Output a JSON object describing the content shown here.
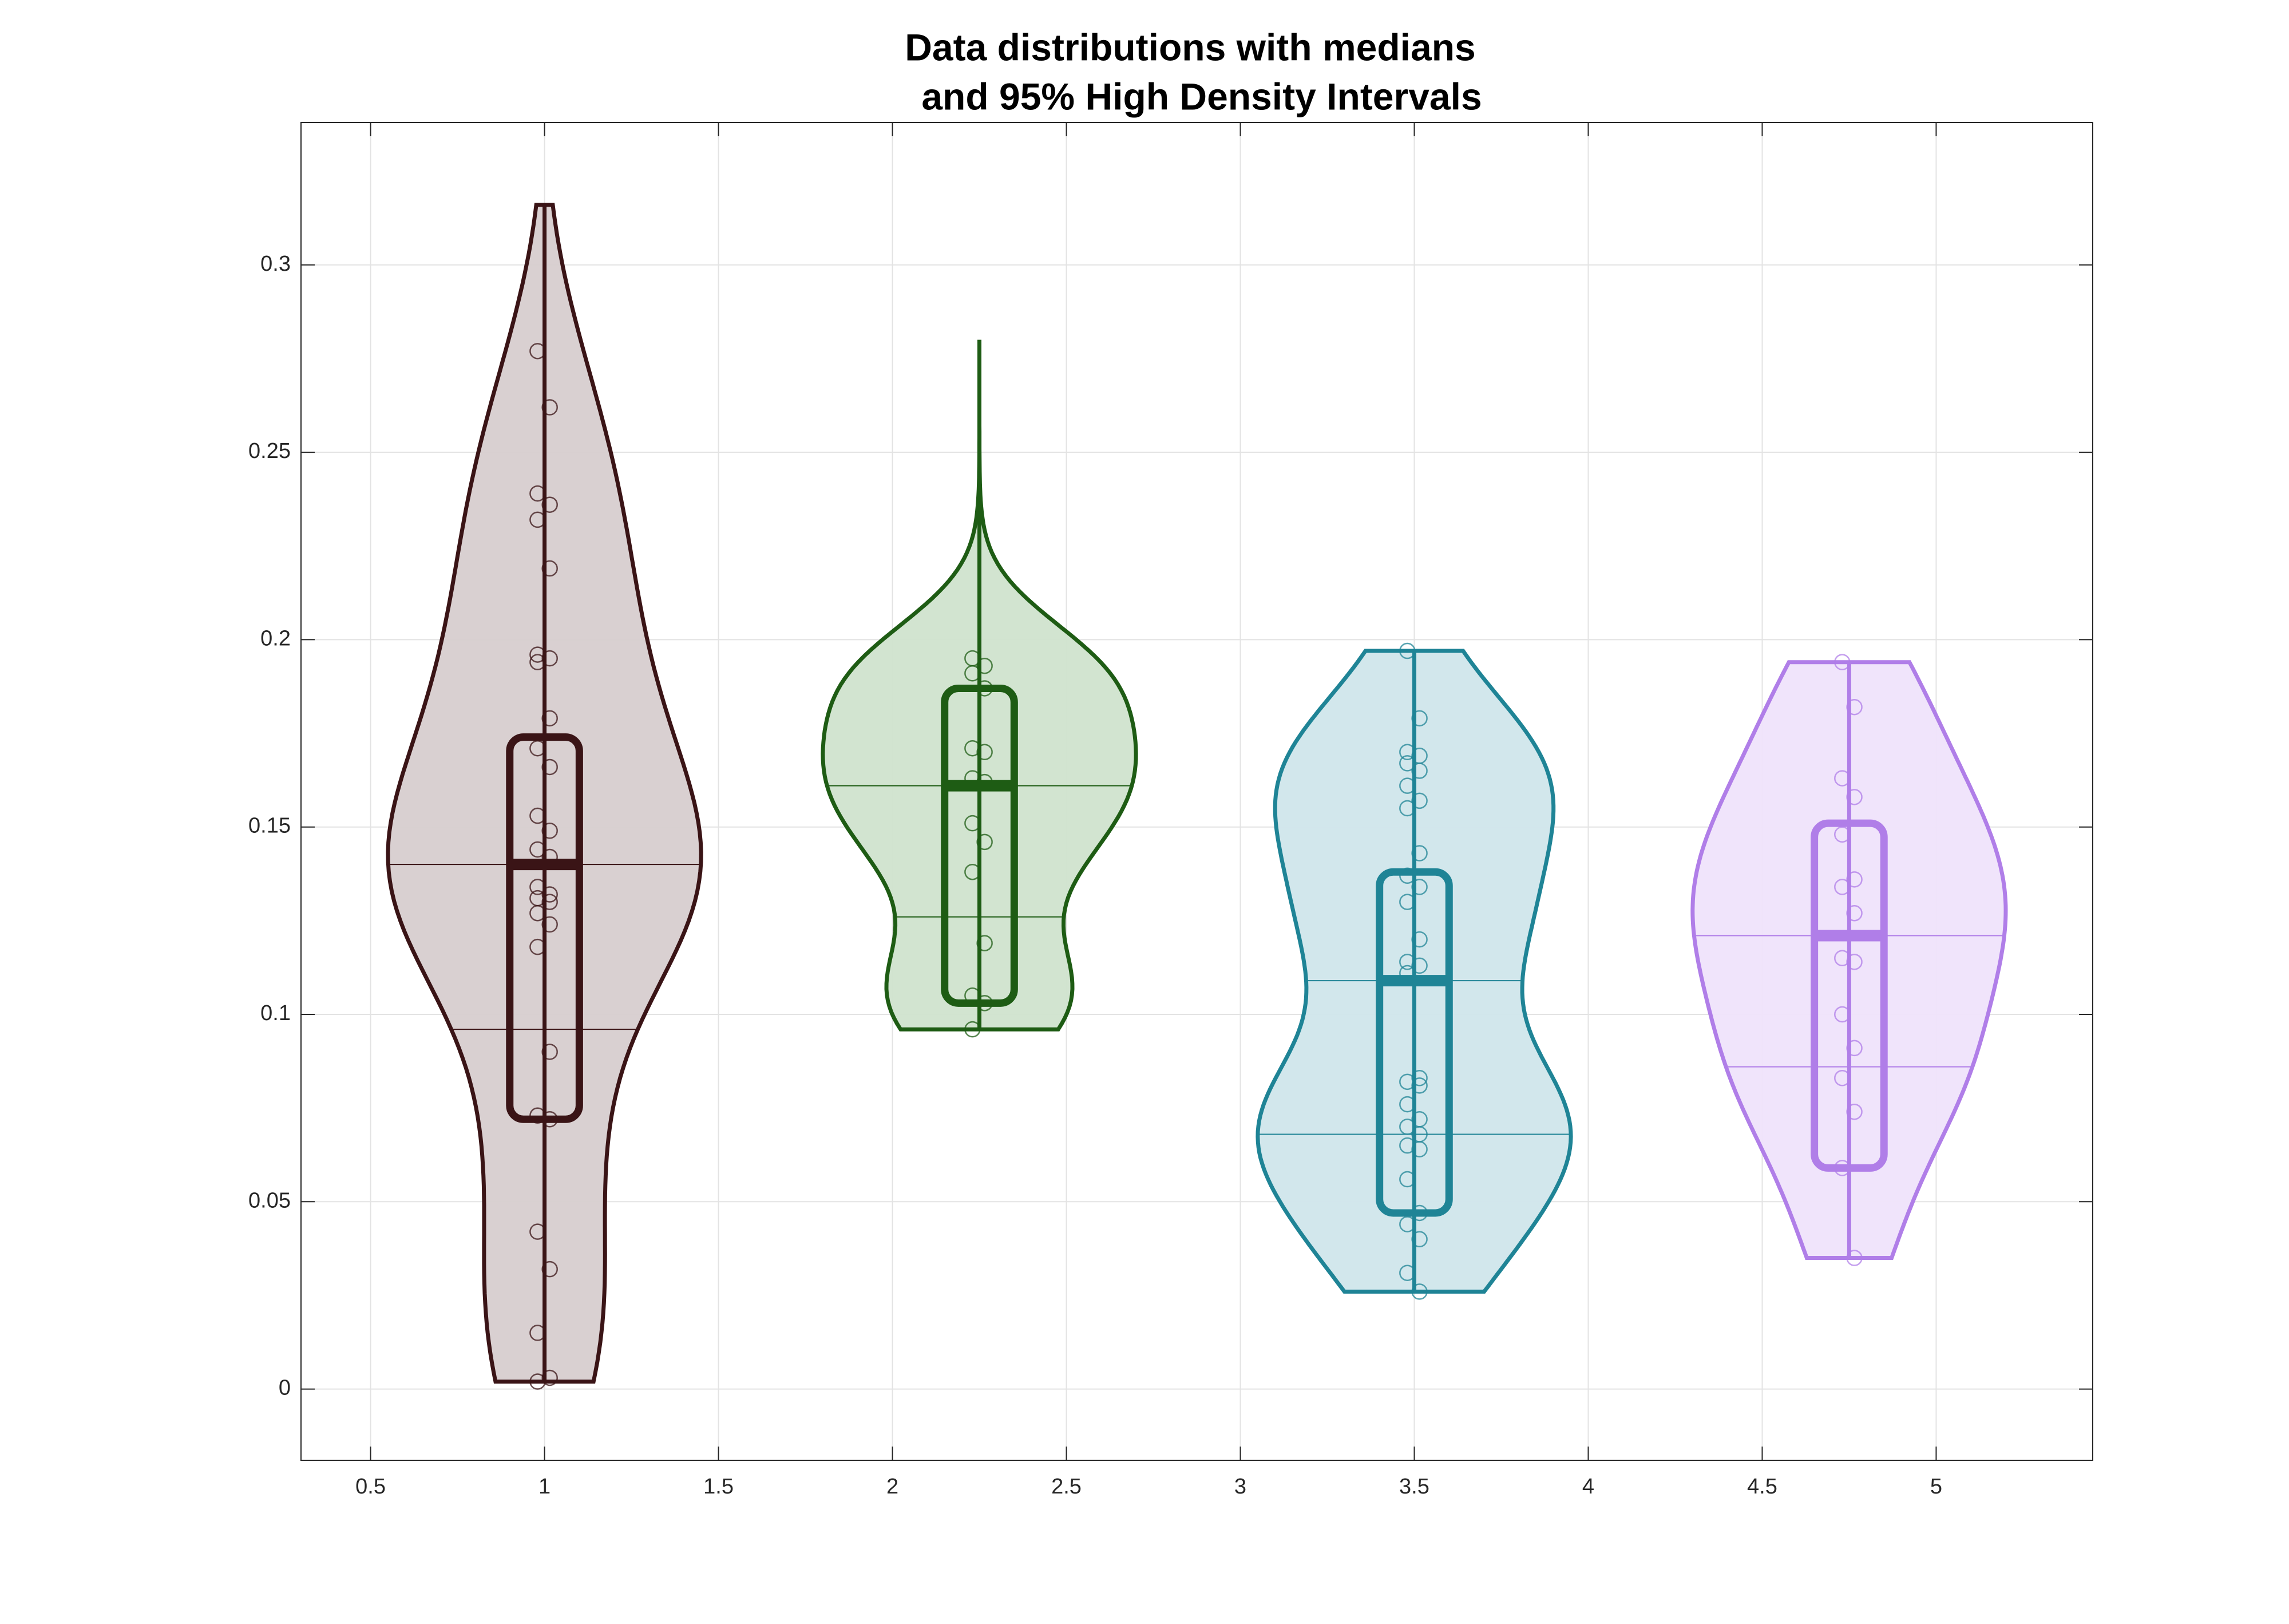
{
  "chart_data": {
    "type": "violin",
    "title": [
      "Data distributions with medians",
      "and 95% High Density Intervals"
    ],
    "xlim": [
      0.3,
      5.45
    ],
    "ylim": [
      -0.019,
      0.338
    ],
    "xticks": [
      0.5,
      1,
      1.5,
      2,
      2.5,
      3,
      3.5,
      4,
      4.5,
      5
    ],
    "yticks": [
      0,
      0.05,
      0.1,
      0.15,
      0.2,
      0.25,
      0.3
    ],
    "grid": true,
    "groups": [
      {
        "x": 1,
        "color": "#3a1416",
        "fill": "#d7cdcf",
        "median": 0.14,
        "box": [
          0.072,
          0.174
        ],
        "range": [
          0.002,
          0.316
        ],
        "reference_lines": [
          0.14,
          0.096
        ],
        "points": [
          0.277,
          0.262,
          0.239,
          0.236,
          0.232,
          0.219,
          0.196,
          0.195,
          0.194,
          0.179,
          0.171,
          0.166,
          0.153,
          0.149,
          0.144,
          0.142,
          0.134,
          0.132,
          0.131,
          0.13,
          0.127,
          0.124,
          0.118,
          0.09,
          0.073,
          0.072,
          0.042,
          0.032,
          0.015,
          0.003,
          0.002
        ]
      },
      {
        "x": 2.25,
        "color": "#1e5c14",
        "fill": "#d0e3cd",
        "median": 0.161,
        "box": [
          0.103,
          0.187
        ],
        "range": [
          0.096,
          0.28
        ],
        "reference_lines": [
          0.161,
          0.126
        ],
        "points": [
          0.195,
          0.193,
          0.191,
          0.187,
          0.171,
          0.17,
          0.163,
          0.162,
          0.151,
          0.146,
          0.138,
          0.119,
          0.105,
          0.103,
          0.096
        ]
      },
      {
        "x": 3.5,
        "color": "#1f8496",
        "fill": "#d0e6eb",
        "median": 0.109,
        "box": [
          0.047,
          0.138
        ],
        "range": [
          0.026,
          0.197
        ],
        "reference_lines": [
          0.109,
          0.068
        ],
        "points": [
          0.197,
          0.179,
          0.17,
          0.169,
          0.167,
          0.165,
          0.161,
          0.157,
          0.155,
          0.143,
          0.137,
          0.134,
          0.13,
          0.12,
          0.114,
          0.113,
          0.111,
          0.083,
          0.082,
          0.081,
          0.076,
          0.072,
          0.07,
          0.068,
          0.065,
          0.064,
          0.056,
          0.047,
          0.044,
          0.04,
          0.031,
          0.026
        ]
      },
      {
        "x": 4.75,
        "color": "#b07ee8",
        "fill": "#efe3fb",
        "median": 0.121,
        "box": [
          0.059,
          0.151
        ],
        "range": [
          0.035,
          0.194
        ],
        "reference_lines": [
          0.121,
          0.086
        ],
        "points": [
          0.194,
          0.182,
          0.163,
          0.158,
          0.148,
          0.136,
          0.134,
          0.127,
          0.115,
          0.114,
          0.1,
          0.091,
          0.083,
          0.074,
          0.059,
          0.035
        ]
      }
    ]
  }
}
